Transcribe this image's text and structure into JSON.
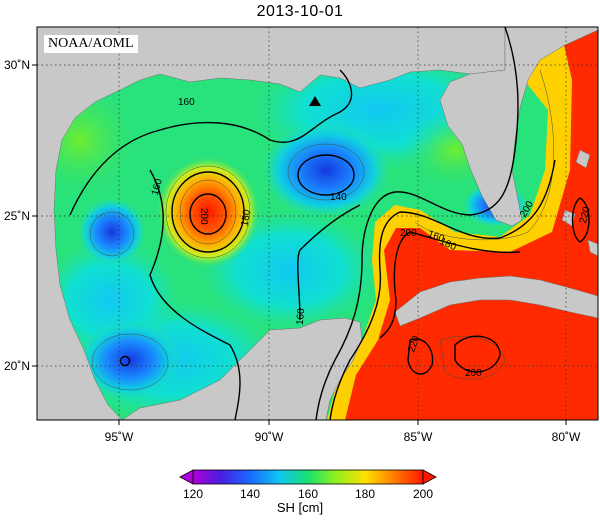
{
  "title": "2013-10-01",
  "credit": "NOAA/AOML",
  "map": {
    "lon_range": [
      -98.5,
      -78
    ],
    "lat_range": [
      18,
      31
    ],
    "lon_ticks": [
      {
        "value": -95,
        "label": "95˚W"
      },
      {
        "value": -90,
        "label": "90˚W"
      },
      {
        "value": -85,
        "label": "85˚W"
      },
      {
        "value": -80,
        "label": "80˚W"
      }
    ],
    "lat_ticks": [
      {
        "value": 30,
        "label": "30˚N"
      },
      {
        "value": 25,
        "label": "25˚N"
      },
      {
        "value": 20,
        "label": "20˚N"
      }
    ],
    "contour_labels": [
      "160",
      "160",
      "160",
      "140",
      "180",
      "200",
      "180",
      "160",
      "200",
      "220",
      "200",
      "220",
      "200"
    ],
    "marker": {
      "name": "triangle-marker",
      "lon": -88.2,
      "lat": 28.8
    },
    "colors": {
      "land": "#c8c8c8",
      "ocean_base": "#22e68a"
    }
  },
  "colorbar": {
    "ticks": [
      "120",
      "140",
      "160",
      "180",
      "200"
    ],
    "label": "SH [cm]",
    "stops": [
      "#b000d8",
      "#3020e0",
      "#1aa8ff",
      "#00e8c8",
      "#22e050",
      "#a8f020",
      "#ffe000",
      "#ff8000",
      "#ff1800"
    ]
  }
}
